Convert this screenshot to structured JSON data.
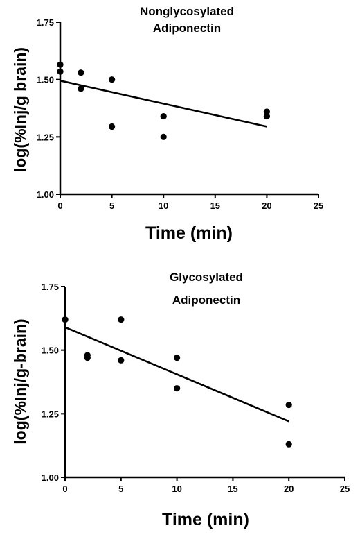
{
  "chart_data": [
    {
      "type": "scatter",
      "title_lines": [
        "Nonglycosylated",
        "Adiponectin"
      ],
      "xlabel": "Time (min)",
      "ylabel": "log(%Inj/g brain)",
      "xlim": [
        0,
        25
      ],
      "ylim": [
        1.0,
        1.75
      ],
      "x_ticks": [
        0,
        5,
        10,
        15,
        20,
        25
      ],
      "y_ticks": [
        1.0,
        1.25,
        1.5,
        1.75
      ],
      "x_tick_labels": [
        "0",
        "5",
        "10",
        "15",
        "20",
        "25"
      ],
      "y_tick_labels": [
        "1.00",
        "1.25",
        "1.50",
        "1.75"
      ],
      "grid": false,
      "points": [
        {
          "x": 0,
          "y": 1.565
        },
        {
          "x": 0,
          "y": 1.535
        },
        {
          "x": 2,
          "y": 1.53
        },
        {
          "x": 2,
          "y": 1.46
        },
        {
          "x": 5,
          "y": 1.5
        },
        {
          "x": 5,
          "y": 1.295
        },
        {
          "x": 10,
          "y": 1.34
        },
        {
          "x": 10,
          "y": 1.25
        },
        {
          "x": 20,
          "y": 1.36
        },
        {
          "x": 20,
          "y": 1.34
        }
      ],
      "regression": {
        "x": [
          0,
          20
        ],
        "y": [
          1.495,
          1.295
        ]
      }
    },
    {
      "type": "scatter",
      "title_lines": [
        "Glycosylated",
        "Adiponectin"
      ],
      "xlabel": "Time (min)",
      "ylabel": "log(%Inj/g-brain)",
      "xlim": [
        0,
        25
      ],
      "ylim": [
        1.0,
        1.75
      ],
      "x_ticks": [
        0,
        5,
        10,
        15,
        20,
        25
      ],
      "y_ticks": [
        1.0,
        1.25,
        1.5,
        1.75
      ],
      "x_tick_labels": [
        "0",
        "5",
        "10",
        "15",
        "20",
        "25"
      ],
      "y_tick_labels": [
        "1.00",
        "1.25",
        "1.50",
        "1.75"
      ],
      "grid": false,
      "points": [
        {
          "x": 0,
          "y": 1.62
        },
        {
          "x": 0,
          "y": 1.62
        },
        {
          "x": 2,
          "y": 1.48
        },
        {
          "x": 2,
          "y": 1.47
        },
        {
          "x": 5,
          "y": 1.62
        },
        {
          "x": 5,
          "y": 1.46
        },
        {
          "x": 10,
          "y": 1.47
        },
        {
          "x": 10,
          "y": 1.35
        },
        {
          "x": 20,
          "y": 1.285
        },
        {
          "x": 20,
          "y": 1.13
        }
      ],
      "regression": {
        "x": [
          0,
          20
        ],
        "y": [
          1.59,
          1.22
        ]
      }
    }
  ]
}
